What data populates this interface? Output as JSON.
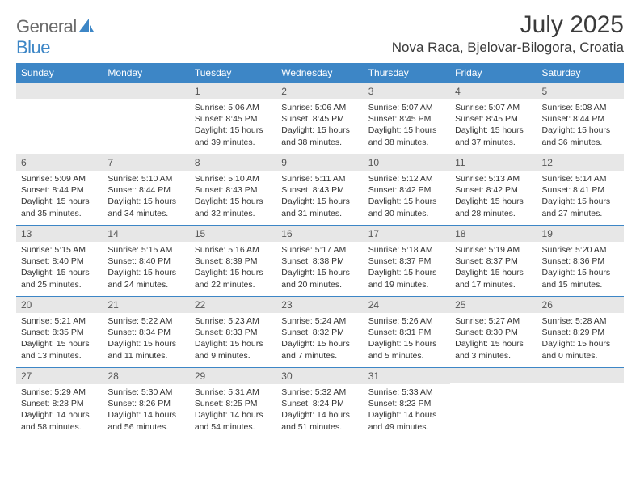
{
  "brand": {
    "text_a": "General",
    "text_b": "Blue"
  },
  "title": "July 2025",
  "location": "Nova Raca, Bjelovar-Bilogora, Croatia",
  "colors": {
    "accent": "#3d86c6",
    "dow_bg": "#3d86c6",
    "dow_text": "#ffffff",
    "daynum_bg": "#e7e7e7",
    "daynum_text": "#555555",
    "body_text": "#333333",
    "page_bg": "#ffffff"
  },
  "typography": {
    "title_fontsize": 30,
    "location_fontsize": 17,
    "dow_fontsize": 12,
    "cell_fontsize": 10.5
  },
  "days_of_week": [
    "Sunday",
    "Monday",
    "Tuesday",
    "Wednesday",
    "Thursday",
    "Friday",
    "Saturday"
  ],
  "weeks": [
    [
      null,
      null,
      {
        "n": "1",
        "sunrise": "Sunrise: 5:06 AM",
        "sunset": "Sunset: 8:45 PM",
        "daylight": "Daylight: 15 hours and 39 minutes."
      },
      {
        "n": "2",
        "sunrise": "Sunrise: 5:06 AM",
        "sunset": "Sunset: 8:45 PM",
        "daylight": "Daylight: 15 hours and 38 minutes."
      },
      {
        "n": "3",
        "sunrise": "Sunrise: 5:07 AM",
        "sunset": "Sunset: 8:45 PM",
        "daylight": "Daylight: 15 hours and 38 minutes."
      },
      {
        "n": "4",
        "sunrise": "Sunrise: 5:07 AM",
        "sunset": "Sunset: 8:45 PM",
        "daylight": "Daylight: 15 hours and 37 minutes."
      },
      {
        "n": "5",
        "sunrise": "Sunrise: 5:08 AM",
        "sunset": "Sunset: 8:44 PM",
        "daylight": "Daylight: 15 hours and 36 minutes."
      }
    ],
    [
      {
        "n": "6",
        "sunrise": "Sunrise: 5:09 AM",
        "sunset": "Sunset: 8:44 PM",
        "daylight": "Daylight: 15 hours and 35 minutes."
      },
      {
        "n": "7",
        "sunrise": "Sunrise: 5:10 AM",
        "sunset": "Sunset: 8:44 PM",
        "daylight": "Daylight: 15 hours and 34 minutes."
      },
      {
        "n": "8",
        "sunrise": "Sunrise: 5:10 AM",
        "sunset": "Sunset: 8:43 PM",
        "daylight": "Daylight: 15 hours and 32 minutes."
      },
      {
        "n": "9",
        "sunrise": "Sunrise: 5:11 AM",
        "sunset": "Sunset: 8:43 PM",
        "daylight": "Daylight: 15 hours and 31 minutes."
      },
      {
        "n": "10",
        "sunrise": "Sunrise: 5:12 AM",
        "sunset": "Sunset: 8:42 PM",
        "daylight": "Daylight: 15 hours and 30 minutes."
      },
      {
        "n": "11",
        "sunrise": "Sunrise: 5:13 AM",
        "sunset": "Sunset: 8:42 PM",
        "daylight": "Daylight: 15 hours and 28 minutes."
      },
      {
        "n": "12",
        "sunrise": "Sunrise: 5:14 AM",
        "sunset": "Sunset: 8:41 PM",
        "daylight": "Daylight: 15 hours and 27 minutes."
      }
    ],
    [
      {
        "n": "13",
        "sunrise": "Sunrise: 5:15 AM",
        "sunset": "Sunset: 8:40 PM",
        "daylight": "Daylight: 15 hours and 25 minutes."
      },
      {
        "n": "14",
        "sunrise": "Sunrise: 5:15 AM",
        "sunset": "Sunset: 8:40 PM",
        "daylight": "Daylight: 15 hours and 24 minutes."
      },
      {
        "n": "15",
        "sunrise": "Sunrise: 5:16 AM",
        "sunset": "Sunset: 8:39 PM",
        "daylight": "Daylight: 15 hours and 22 minutes."
      },
      {
        "n": "16",
        "sunrise": "Sunrise: 5:17 AM",
        "sunset": "Sunset: 8:38 PM",
        "daylight": "Daylight: 15 hours and 20 minutes."
      },
      {
        "n": "17",
        "sunrise": "Sunrise: 5:18 AM",
        "sunset": "Sunset: 8:37 PM",
        "daylight": "Daylight: 15 hours and 19 minutes."
      },
      {
        "n": "18",
        "sunrise": "Sunrise: 5:19 AM",
        "sunset": "Sunset: 8:37 PM",
        "daylight": "Daylight: 15 hours and 17 minutes."
      },
      {
        "n": "19",
        "sunrise": "Sunrise: 5:20 AM",
        "sunset": "Sunset: 8:36 PM",
        "daylight": "Daylight: 15 hours and 15 minutes."
      }
    ],
    [
      {
        "n": "20",
        "sunrise": "Sunrise: 5:21 AM",
        "sunset": "Sunset: 8:35 PM",
        "daylight": "Daylight: 15 hours and 13 minutes."
      },
      {
        "n": "21",
        "sunrise": "Sunrise: 5:22 AM",
        "sunset": "Sunset: 8:34 PM",
        "daylight": "Daylight: 15 hours and 11 minutes."
      },
      {
        "n": "22",
        "sunrise": "Sunrise: 5:23 AM",
        "sunset": "Sunset: 8:33 PM",
        "daylight": "Daylight: 15 hours and 9 minutes."
      },
      {
        "n": "23",
        "sunrise": "Sunrise: 5:24 AM",
        "sunset": "Sunset: 8:32 PM",
        "daylight": "Daylight: 15 hours and 7 minutes."
      },
      {
        "n": "24",
        "sunrise": "Sunrise: 5:26 AM",
        "sunset": "Sunset: 8:31 PM",
        "daylight": "Daylight: 15 hours and 5 minutes."
      },
      {
        "n": "25",
        "sunrise": "Sunrise: 5:27 AM",
        "sunset": "Sunset: 8:30 PM",
        "daylight": "Daylight: 15 hours and 3 minutes."
      },
      {
        "n": "26",
        "sunrise": "Sunrise: 5:28 AM",
        "sunset": "Sunset: 8:29 PM",
        "daylight": "Daylight: 15 hours and 0 minutes."
      }
    ],
    [
      {
        "n": "27",
        "sunrise": "Sunrise: 5:29 AM",
        "sunset": "Sunset: 8:28 PM",
        "daylight": "Daylight: 14 hours and 58 minutes."
      },
      {
        "n": "28",
        "sunrise": "Sunrise: 5:30 AM",
        "sunset": "Sunset: 8:26 PM",
        "daylight": "Daylight: 14 hours and 56 minutes."
      },
      {
        "n": "29",
        "sunrise": "Sunrise: 5:31 AM",
        "sunset": "Sunset: 8:25 PM",
        "daylight": "Daylight: 14 hours and 54 minutes."
      },
      {
        "n": "30",
        "sunrise": "Sunrise: 5:32 AM",
        "sunset": "Sunset: 8:24 PM",
        "daylight": "Daylight: 14 hours and 51 minutes."
      },
      {
        "n": "31",
        "sunrise": "Sunrise: 5:33 AM",
        "sunset": "Sunset: 8:23 PM",
        "daylight": "Daylight: 14 hours and 49 minutes."
      },
      null,
      null
    ]
  ]
}
